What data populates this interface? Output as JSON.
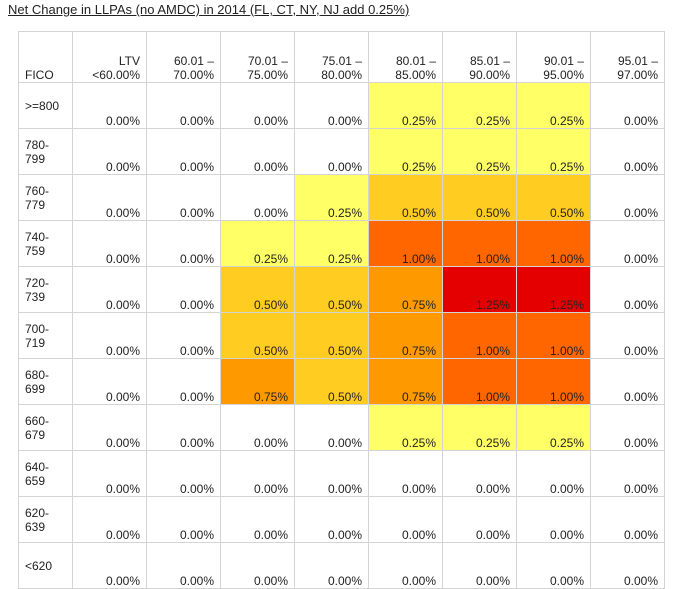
{
  "title": "Net Change in LLPAs (no AMDC)  in 2014  (FL, CT, NY, NJ add 0.25%)",
  "chart_data": {
    "type": "heatmap",
    "row_header": "FICO",
    "columns": [
      [
        "LTV",
        "<60.00%"
      ],
      [
        "60.01 –",
        "70.00%"
      ],
      [
        "70.01 –",
        "75.00%"
      ],
      [
        "75.01 –",
        "80.00%"
      ],
      [
        "80.01 –",
        "85.00%"
      ],
      [
        "85.01 –",
        "90.00%"
      ],
      [
        "90.01 –",
        "95.00%"
      ],
      [
        "95.01 –",
        "97.00%"
      ]
    ],
    "rows": [
      {
        "fico": [
          ">=800"
        ],
        "values": [
          "0.00%",
          "0.00%",
          "0.00%",
          "0.00%",
          "0.25%",
          "0.25%",
          "0.25%",
          "0.00%"
        ]
      },
      {
        "fico": [
          "780-",
          "799"
        ],
        "values": [
          "0.00%",
          "0.00%",
          "0.00%",
          "0.00%",
          "0.25%",
          "0.25%",
          "0.25%",
          "0.00%"
        ]
      },
      {
        "fico": [
          "760-",
          "779"
        ],
        "values": [
          "0.00%",
          "0.00%",
          "0.00%",
          "0.25%",
          "0.50%",
          "0.50%",
          "0.50%",
          "0.00%"
        ]
      },
      {
        "fico": [
          "740-",
          "759"
        ],
        "values": [
          "0.00%",
          "0.00%",
          "0.25%",
          "0.25%",
          "1.00%",
          "1.00%",
          "1.00%",
          "0.00%"
        ]
      },
      {
        "fico": [
          "720-",
          "739"
        ],
        "values": [
          "0.00%",
          "0.00%",
          "0.50%",
          "0.50%",
          "0.75%",
          "1.25%",
          "1.25%",
          "0.00%"
        ]
      },
      {
        "fico": [
          "700-",
          "719"
        ],
        "values": [
          "0.00%",
          "0.00%",
          "0.50%",
          "0.50%",
          "0.75%",
          "1.00%",
          "1.00%",
          "0.00%"
        ]
      },
      {
        "fico": [
          "680-",
          "699"
        ],
        "values": [
          "0.00%",
          "0.00%",
          "0.75%",
          "0.50%",
          "0.75%",
          "1.00%",
          "1.00%",
          "0.00%"
        ]
      },
      {
        "fico": [
          "660-",
          "679"
        ],
        "values": [
          "0.00%",
          "0.00%",
          "0.00%",
          "0.00%",
          "0.25%",
          "0.25%",
          "0.25%",
          "0.00%"
        ]
      },
      {
        "fico": [
          "640-",
          "659"
        ],
        "values": [
          "0.00%",
          "0.00%",
          "0.00%",
          "0.00%",
          "0.00%",
          "0.00%",
          "0.00%",
          "0.00%"
        ]
      },
      {
        "fico": [
          "620-",
          "639"
        ],
        "values": [
          "0.00%",
          "0.00%",
          "0.00%",
          "0.00%",
          "0.00%",
          "0.00%",
          "0.00%",
          "0.00%"
        ]
      },
      {
        "fico": [
          "<620"
        ],
        "values": [
          "0.00%",
          "0.00%",
          "0.00%",
          "0.00%",
          "0.00%",
          "0.00%",
          "0.00%",
          "0.00%"
        ]
      }
    ]
  },
  "colors": {
    "0.00%": "#ffffff",
    "0.25%": "#ffff66",
    "0.50%": "#ffcc22",
    "0.75%": "#ff9900",
    "1.00%": "#ff6600",
    "1.25%": "#e50000"
  }
}
